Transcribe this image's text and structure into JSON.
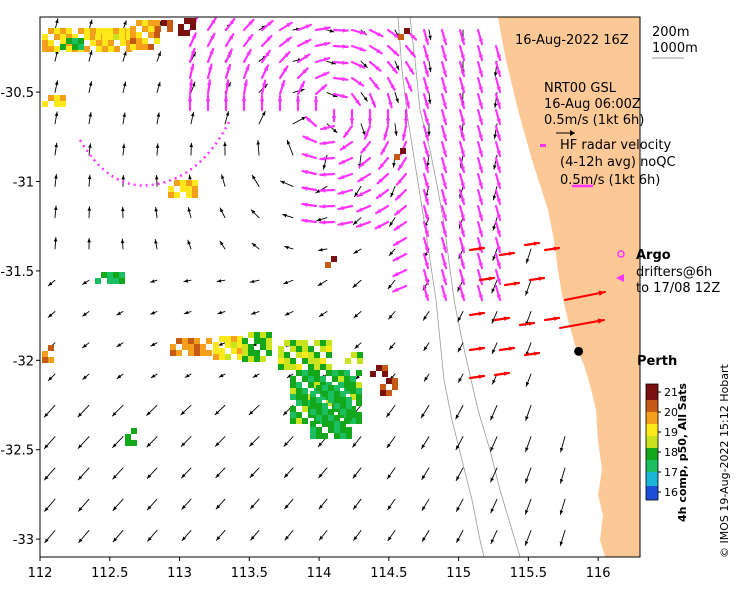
{
  "map": {
    "title": "16-Aug-2022 16Z",
    "extent": {
      "lon": [
        112,
        116.3
      ],
      "lat": [
        -33.1,
        -30.08
      ]
    },
    "x_ticks": [
      "112",
      "112.5",
      "113",
      "113.5",
      "114",
      "114.5",
      "115",
      "115.5",
      "116"
    ],
    "y_ticks": [
      "-30.5",
      "-31",
      "-31.5",
      "-32",
      "-32.5",
      "-33"
    ],
    "land_color": "#fcc896",
    "depth_contours": [
      "200m",
      "1000m"
    ],
    "nrt_label": [
      "NRT00 GSL",
      "16-Aug 06:00Z",
      "0.5m/s (1kt 6h)"
    ],
    "hf_label": [
      "HF radar velocity",
      "(4-12h avg) noQC",
      "0.5m/s (1kt 6h)"
    ],
    "hf_color": "#ff33ff",
    "argo_label": "Argo",
    "drifters_label": [
      "drifters@6h",
      "to 17/08 12Z"
    ],
    "drifter_color": "#ff0000",
    "city": {
      "name": "Perth",
      "lon": 115.86,
      "lat": -31.95
    },
    "colorbar": {
      "title": "4h comp, p50, All Sats",
      "ticks": [
        "16",
        "17",
        "18",
        "19",
        "20",
        "21"
      ],
      "range": [
        15.6,
        21.4
      ]
    },
    "credit": "© IMOS 19-Aug-2022 15:12 Hobart"
  }
}
